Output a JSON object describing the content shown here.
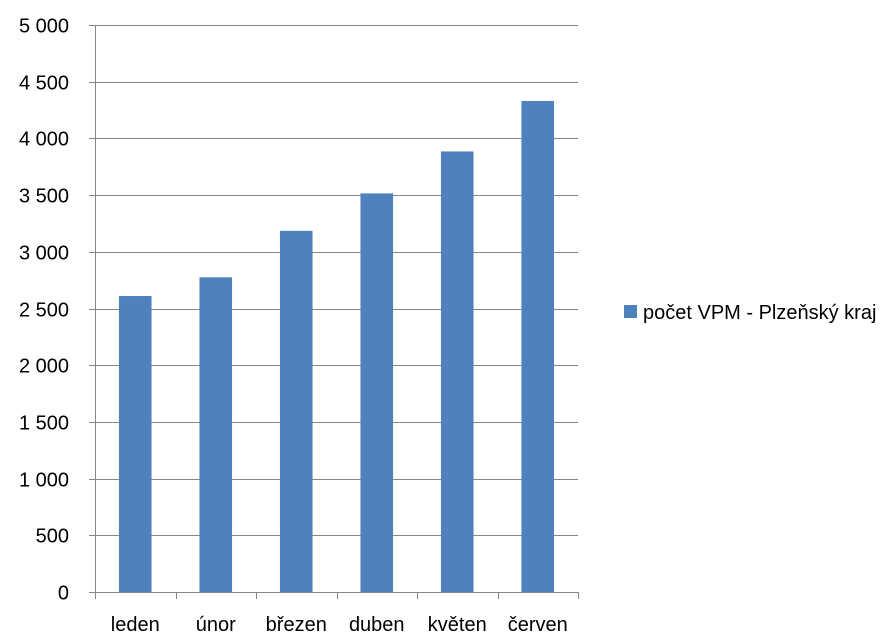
{
  "chart_data": {
    "type": "bar",
    "title": "",
    "xlabel": "",
    "ylabel": "",
    "categories": [
      "leden",
      "únor",
      "březen",
      "duben",
      "květen",
      "červen"
    ],
    "series": [
      {
        "name": "počet VPM - Plzeňský kraj",
        "values": [
          2610,
          2775,
          3185,
          3515,
          3885,
          4330
        ],
        "color": "#4F81BD"
      }
    ],
    "ylim": [
      0,
      5000
    ],
    "yticks": [
      {
        "value": 0,
        "label": "0"
      },
      {
        "value": 500,
        "label": "500"
      },
      {
        "value": 1000,
        "label": "1 000"
      },
      {
        "value": 1500,
        "label": "1 500"
      },
      {
        "value": 2000,
        "label": "2 000"
      },
      {
        "value": 2500,
        "label": "2 500"
      },
      {
        "value": 3000,
        "label": "3 000"
      },
      {
        "value": 3500,
        "label": "3 500"
      },
      {
        "value": 4000,
        "label": "4 000"
      },
      {
        "value": 4500,
        "label": "4 500"
      },
      {
        "value": 5000,
        "label": "5 000"
      }
    ],
    "grid": true,
    "legend_position": "right",
    "gridline_color": "#868686"
  }
}
